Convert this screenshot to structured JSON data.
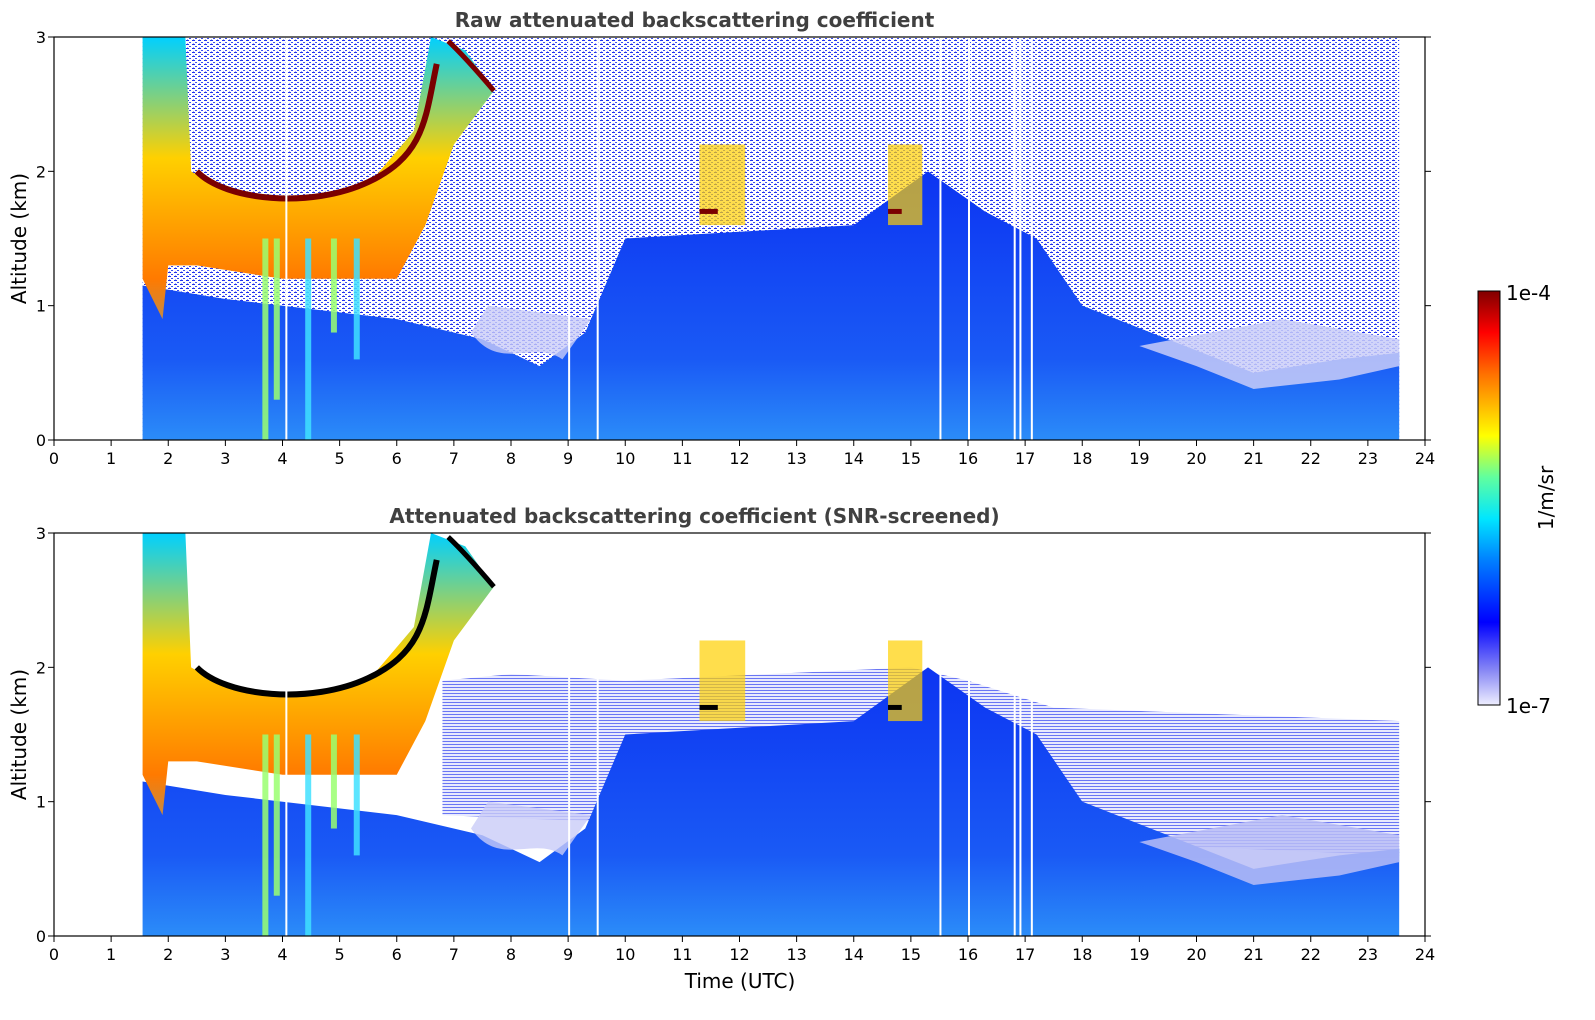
{
  "figure": {
    "xlabel": "Time (UTC)",
    "colorbar": {
      "label": "1/m/sr",
      "max_label": "1e-4",
      "min_label": "1e-7",
      "scale": "log"
    }
  },
  "chart_data": [
    {
      "type": "heatmap",
      "title": "Raw attenuated backscattering coefficient",
      "xlabel": "",
      "ylabel": "Altitude (km)",
      "xlim": [
        0,
        24
      ],
      "ylim": [
        0,
        3
      ],
      "xticks": [
        "0",
        "1",
        "2",
        "3",
        "4",
        "5",
        "6",
        "7",
        "8",
        "9",
        "10",
        "11",
        "12",
        "13",
        "14",
        "15",
        "16",
        "17",
        "18",
        "19",
        "20",
        "21",
        "22",
        "23",
        "24"
      ],
      "yticks": [
        "0",
        "1",
        "2",
        "3"
      ],
      "data_time_range": [
        1.55,
        23.55
      ],
      "features": {
        "cloud_layer_altitude_km": 1.8,
        "cloud_layer_time_range": [
          2.5,
          6.5
        ],
        "boundary_layer_top_km": 1.0
      }
    },
    {
      "type": "heatmap",
      "title": "Attenuated backscattering coefficient (SNR-screened)",
      "xlabel": "Time (UTC)",
      "ylabel": "Altitude (km)",
      "xlim": [
        0,
        24
      ],
      "ylim": [
        0,
        3
      ],
      "xticks": [
        "0",
        "1",
        "2",
        "3",
        "4",
        "5",
        "6",
        "7",
        "8",
        "9",
        "10",
        "11",
        "12",
        "13",
        "14",
        "15",
        "16",
        "17",
        "18",
        "19",
        "20",
        "21",
        "22",
        "23",
        "24"
      ],
      "yticks": [
        "0",
        "1",
        "2",
        "3"
      ],
      "data_time_range": [
        1.55,
        23.55
      ],
      "features": {
        "cloud_layer_altitude_km": 1.8,
        "cloud_layer_time_range": [
          2.5,
          6.5
        ],
        "boundary_layer_top_km": 1.0
      }
    }
  ]
}
